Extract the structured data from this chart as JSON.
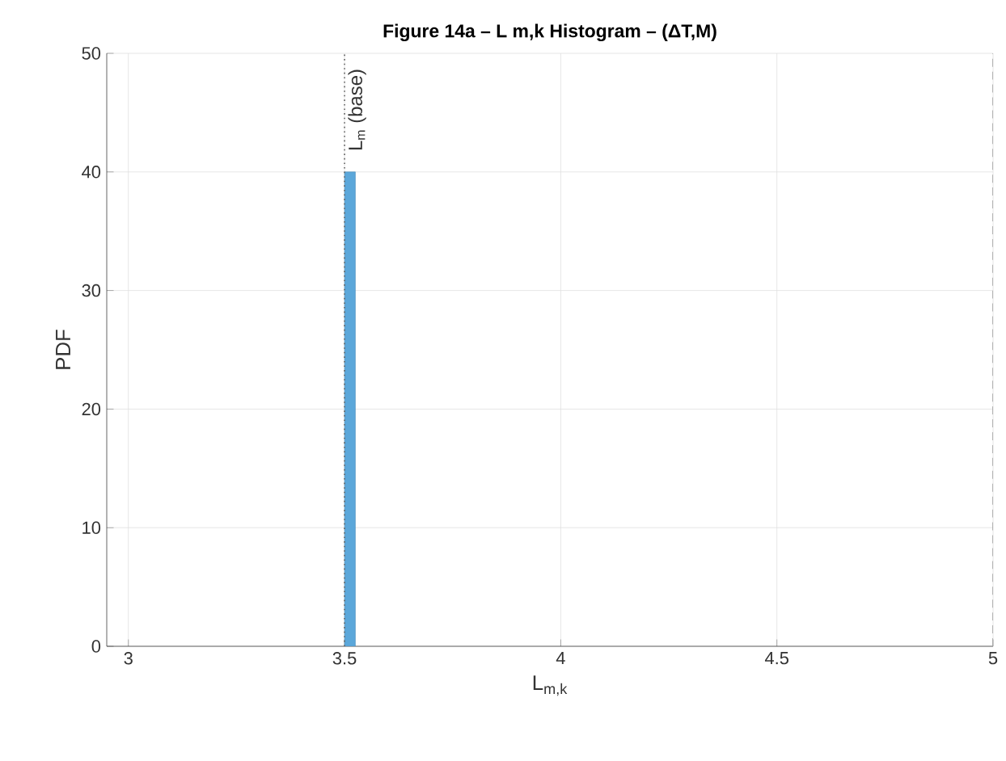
{
  "chart_data": {
    "type": "histogram",
    "title": "Figure 14a – L m,k  Histogram – (ΔT,M)",
    "xlabel": "L$_{m,k}$",
    "ylabel": "PDF",
    "bins": [
      3.5,
      3.525
    ],
    "values": [
      40
    ],
    "color": "#5ba7da",
    "xlim": [
      2.95,
      5
    ],
    "ylim": [
      0,
      50
    ],
    "xticks": [
      3,
      3.5,
      4,
      4.5,
      5
    ],
    "yticks": [
      0,
      10,
      20,
      30,
      40,
      50
    ],
    "grid": true,
    "ref_lines": [
      {
        "axis": "x",
        "value": 3.5,
        "label": "L$_{m}$ (base)",
        "color": "#606060",
        "line_style": "dotted"
      },
      {
        "axis": "x",
        "value": 5,
        "color": "#a0a0a0",
        "line_style": "dashed"
      }
    ]
  }
}
